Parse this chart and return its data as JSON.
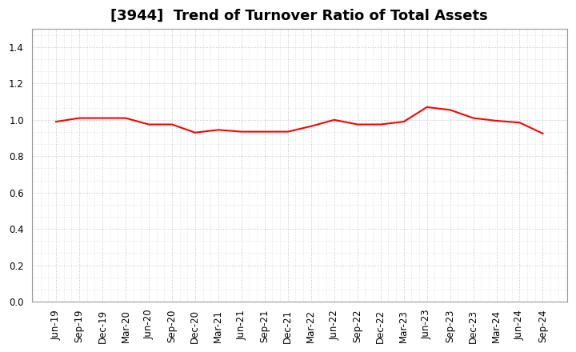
{
  "title": "[3944]  Trend of Turnover Ratio of Total Assets",
  "labels": [
    "Jun-19",
    "Sep-19",
    "Dec-19",
    "Mar-20",
    "Jun-20",
    "Sep-20",
    "Dec-20",
    "Mar-21",
    "Jun-21",
    "Sep-21",
    "Dec-21",
    "Mar-22",
    "Jun-22",
    "Sep-22",
    "Dec-22",
    "Mar-23",
    "Jun-23",
    "Sep-23",
    "Dec-23",
    "Mar-24",
    "Jun-24",
    "Sep-24"
  ],
  "values": [
    0.99,
    1.01,
    1.01,
    1.01,
    0.975,
    0.975,
    0.93,
    0.945,
    0.935,
    0.935,
    0.935,
    0.965,
    1.0,
    0.975,
    0.975,
    0.99,
    1.07,
    1.055,
    1.01,
    0.995,
    0.985,
    0.925
  ],
  "line_color": "#FF0000",
  "line_width": 1.5,
  "ylim": [
    0.0,
    1.5
  ],
  "yticks": [
    0.0,
    0.2,
    0.4,
    0.6,
    0.8,
    1.0,
    1.2,
    1.4
  ],
  "background_color": "#ffffff",
  "plot_bg_color": "#ffffff",
  "grid_color": "#aaaaaa",
  "title_fontsize": 13,
  "tick_fontsize": 8.5
}
